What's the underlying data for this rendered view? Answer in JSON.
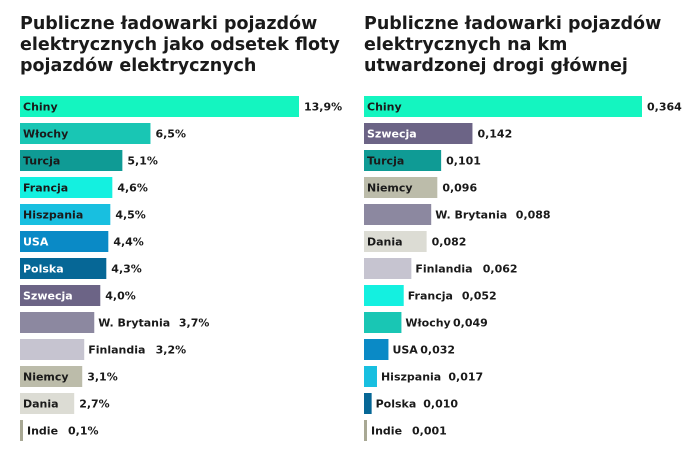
{
  "chart_data": [
    {
      "type": "bar",
      "orientation": "horizontal",
      "title": "Publiczne ładowarki pojazdów elektrycznych jako odsetek floty pojazdów elektrycznych",
      "categories": [
        "Chiny",
        "Włochy",
        "Turcja",
        "Francja",
        "Hiszpania",
        "USA",
        "Polska",
        "Szwecja",
        "W. Brytania",
        "Finlandia",
        "Niemcy",
        "Dania",
        "Indie"
      ],
      "values": [
        13.9,
        6.5,
        5.1,
        4.6,
        4.5,
        4.4,
        4.3,
        4.0,
        3.7,
        3.2,
        3.1,
        2.7,
        0.1
      ],
      "value_labels": [
        "13,9%",
        "6,5%",
        "5,1%",
        "4,6%",
        "4,5%",
        "4,4%",
        "4,3%",
        "4,0%",
        "3,7%",
        "3,2%",
        "3,1%",
        "2,7%",
        "0,1%"
      ],
      "unit": "%",
      "xlim": [
        0,
        13.9
      ],
      "grid": false,
      "legend": "none"
    },
    {
      "type": "bar",
      "orientation": "horizontal",
      "title": "Publiczne ładowarki pojazdów elektrycznych na km utwardzonej drogi głównej",
      "categories": [
        "Chiny",
        "Szwecja",
        "Turcja",
        "Niemcy",
        "W. Brytania",
        "Dania",
        "Finlandia",
        "Francja",
        "Włochy",
        "USA",
        "Hiszpania",
        "Polska",
        "Indie"
      ],
      "values": [
        0.364,
        0.142,
        0.101,
        0.096,
        0.088,
        0.082,
        0.062,
        0.052,
        0.049,
        0.032,
        0.017,
        0.01,
        0.001
      ],
      "value_labels": [
        "0,364",
        "0,142",
        "0,101",
        "0,096",
        "0,088",
        "0,082",
        "0,062",
        "0,052",
        "0,049",
        "0,032",
        "0,017",
        "0,010",
        "0,001"
      ],
      "xlim": [
        0,
        0.364
      ],
      "grid": false,
      "legend": "none"
    }
  ],
  "colors": {
    "Chiny": "#14f5c0",
    "Włochy": "#19c6b4",
    "Turcja": "#0f9b95",
    "Francja": "#14f0e0",
    "Hiszpania": "#18bfe0",
    "USA": "#0a8ac6",
    "Polska": "#066796",
    "Szwecja": "#6c6486",
    "W. Brytania": "#8c88a0",
    "Finlandia": "#c6c4d0",
    "Niemcy": "#bcbcaa",
    "Dania": "#dcdcd4",
    "Indie": "#a8a894"
  }
}
